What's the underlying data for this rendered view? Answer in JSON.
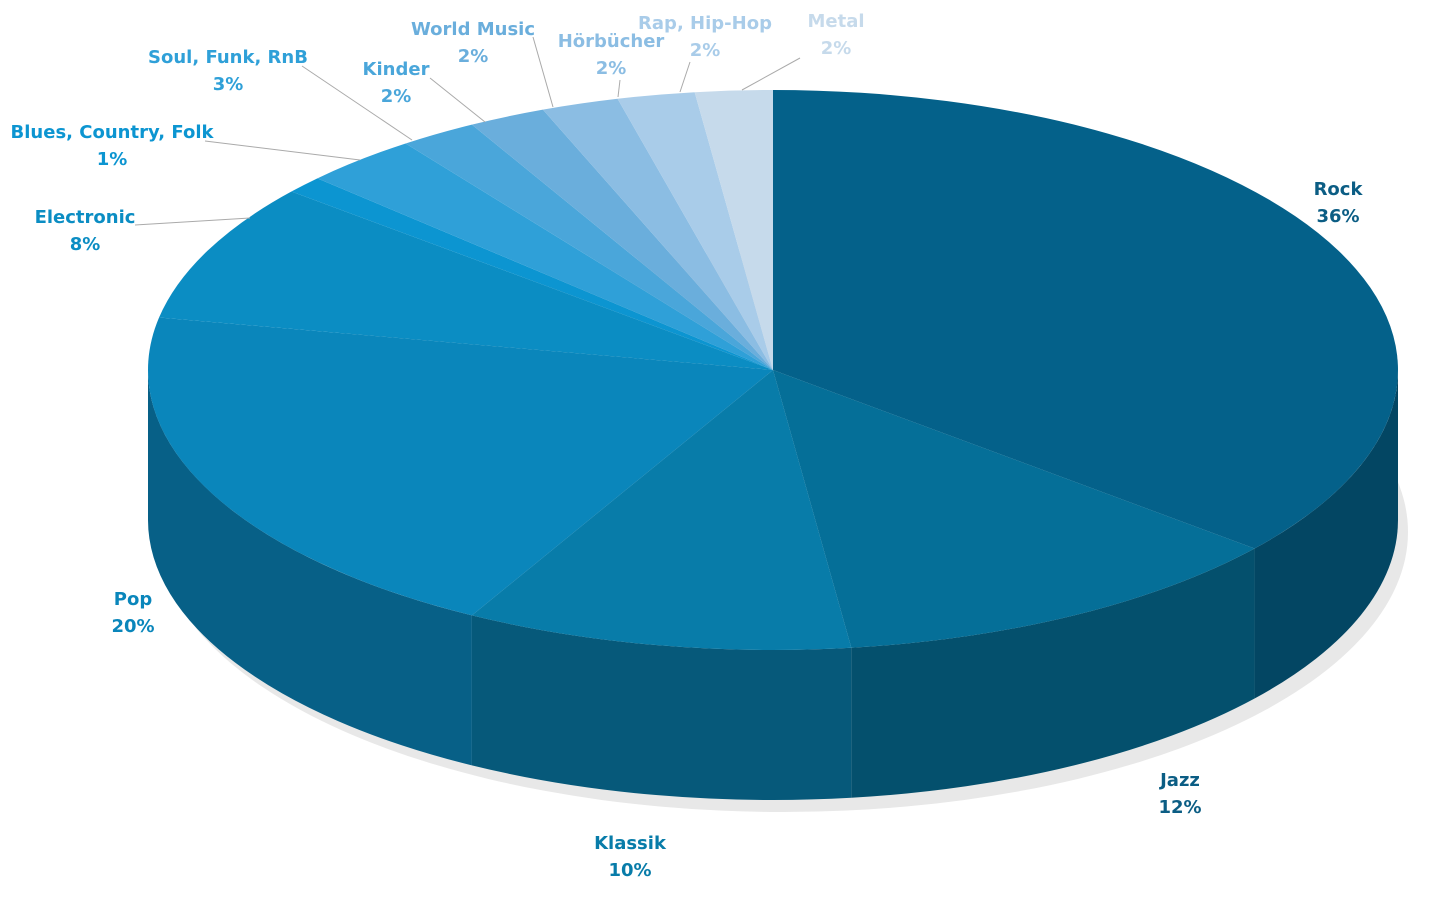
{
  "chart_data": {
    "type": "pie",
    "categories": [
      "Rock",
      "Jazz",
      "Klassik",
      "Pop",
      "Electronic",
      "Blues, Country, Folk",
      "Soul, Funk, RnB",
      "Kinder",
      "World Music",
      "Hörbücher",
      "Rap, Hip-Hop",
      "Metal"
    ],
    "values": [
      36,
      12,
      10,
      20,
      8,
      1,
      3,
      2,
      2,
      2,
      2,
      2
    ],
    "value_labels": [
      "36%",
      "12%",
      "10%",
      "20%",
      "8%",
      "1%",
      "3%",
      "2%",
      "2%",
      "2%",
      "2%",
      "2%"
    ],
    "colors": [
      "#04618a",
      "#056f98",
      "#087ca9",
      "#0a86bb",
      "#0b8dc3",
      "#0c95d1",
      "#2fa0d8",
      "#4aa6da",
      "#6aaedc",
      "#8bbde3",
      "#a9cce9",
      "#c6daeb"
    ]
  }
}
